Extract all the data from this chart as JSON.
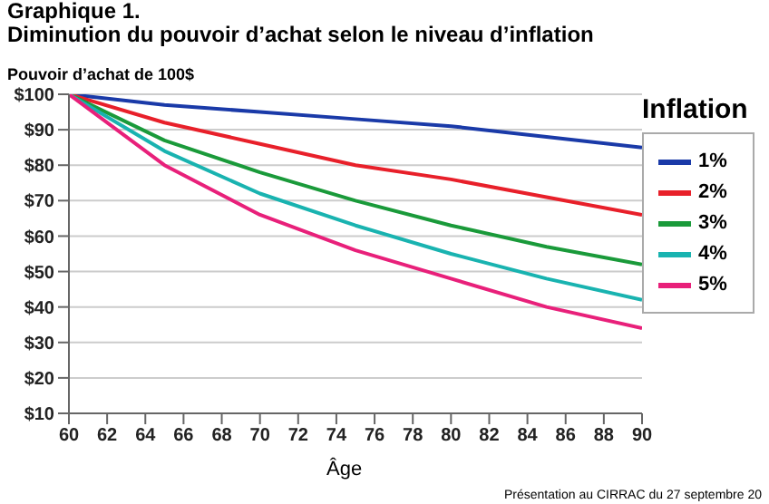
{
  "chart_data": {
    "type": "line",
    "title": "Graphique 1.",
    "subtitle": "Diminution du pouvoir d’achat selon le niveau d’inflation",
    "ylabel": "Pouvoir d’achat de 100$",
    "xlabel": "Âge",
    "legend_title": "Inflation",
    "annotations": [
      "Présentation au CIRRAC du 27 septembre 20"
    ],
    "x": [
      60,
      65,
      70,
      75,
      80,
      85,
      90
    ],
    "series": [
      {
        "name": "1%",
        "color": "#1a3aa8",
        "values": [
          100,
          97,
          95,
          93,
          91,
          88,
          85
        ]
      },
      {
        "name": "2%",
        "color": "#e8202a",
        "values": [
          100,
          92,
          86,
          80,
          76,
          71,
          66
        ]
      },
      {
        "name": "3%",
        "color": "#1a9a3a",
        "values": [
          100,
          87,
          78,
          70,
          63,
          57,
          52
        ]
      },
      {
        "name": "4%",
        "color": "#19b3b0",
        "values": [
          100,
          84,
          72,
          63,
          55,
          48,
          42
        ]
      },
      {
        "name": "5%",
        "color": "#e8207a",
        "values": [
          100,
          80,
          66,
          56,
          48,
          40,
          34
        ]
      }
    ],
    "xlim": [
      60,
      90
    ],
    "xticks": [
      60,
      62,
      64,
      66,
      68,
      70,
      72,
      74,
      76,
      78,
      80,
      82,
      84,
      86,
      88,
      90
    ],
    "ylim": [
      10,
      100
    ],
    "yticks": [
      {
        "value": 10,
        "label": "$10"
      },
      {
        "value": 20,
        "label": "$20"
      },
      {
        "value": 30,
        "label": "$30"
      },
      {
        "value": 40,
        "label": "$40"
      },
      {
        "value": 50,
        "label": "$50"
      },
      {
        "value": 60,
        "label": "$60"
      },
      {
        "value": 70,
        "label": "$70"
      },
      {
        "value": 80,
        "label": "$80"
      },
      {
        "value": 90,
        "label": "$90"
      },
      {
        "value": 100,
        "label": "$100"
      }
    ],
    "grid": "y",
    "legend": "right",
    "marker": "none",
    "line_style": "solid"
  }
}
